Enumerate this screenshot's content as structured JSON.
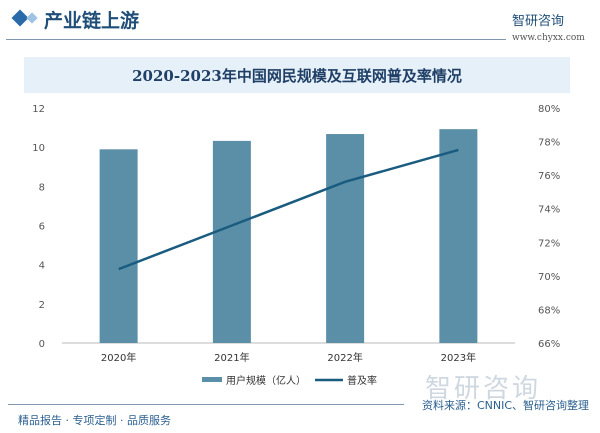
{
  "header": {
    "section_title": "产业链上游",
    "brand": "智研咨询",
    "brand_url": "www.chyxx.com"
  },
  "footer": {
    "tagline": "精品报告 · 专项定制 · 品质服务",
    "source": "资料来源：CNNIC、智研咨询整理",
    "watermark": "智研咨询"
  },
  "colors": {
    "bar": "#5b8fa8",
    "line": "#1a5c80",
    "title": "#1f3f66"
  },
  "chart_data": {
    "type": "bar+line",
    "title": "2020-2023年中国网民规模及互联网普及率情况",
    "categories": [
      "2020年",
      "2021年",
      "2022年",
      "2023年"
    ],
    "series": [
      {
        "name": "用户规模（亿人）",
        "type": "bar",
        "axis": "left",
        "values": [
          9.89,
          10.32,
          10.67,
          10.92
        ]
      },
      {
        "name": "普及率",
        "type": "line",
        "axis": "right",
        "values": [
          70.4,
          73.0,
          75.6,
          77.5
        ]
      }
    ],
    "left_axis": {
      "ylim": [
        0,
        12
      ],
      "ticks": [
        "0",
        "2",
        "4",
        "6",
        "8",
        "10",
        "12"
      ]
    },
    "right_axis": {
      "ylim": [
        66,
        80
      ],
      "ticks": [
        "66%",
        "68%",
        "70%",
        "72%",
        "74%",
        "76%",
        "78%",
        "80%"
      ]
    },
    "grid": false,
    "legend": "bottom"
  }
}
